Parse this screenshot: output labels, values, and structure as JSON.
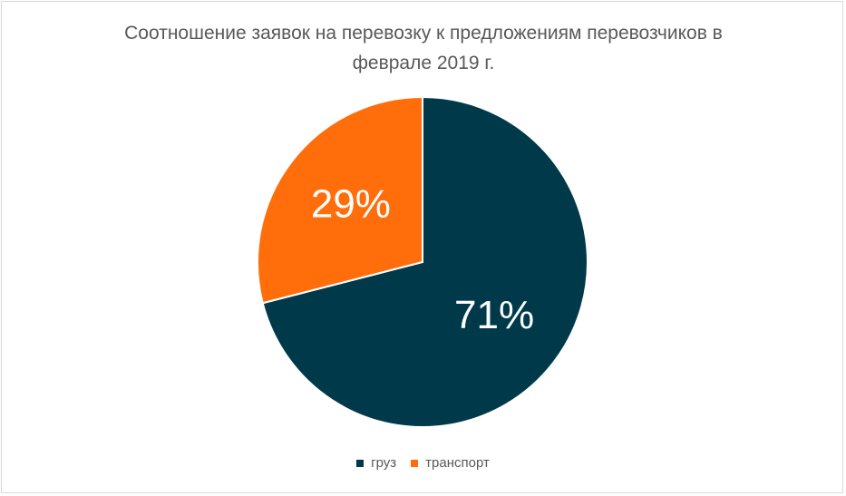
{
  "chart_data": {
    "type": "pie",
    "title": "Соотношение заявок на перевозку к предложениям перевозчиков в феврале 2019 г.",
    "categories": [
      "груз",
      "транспорт"
    ],
    "values": [
      71,
      29
    ],
    "data_labels": [
      "71%",
      "29%"
    ],
    "colors": [
      "#003a4a",
      "#ff6e0a"
    ],
    "legend_position": "bottom",
    "start_angle": "12 o'clock, clockwise"
  }
}
